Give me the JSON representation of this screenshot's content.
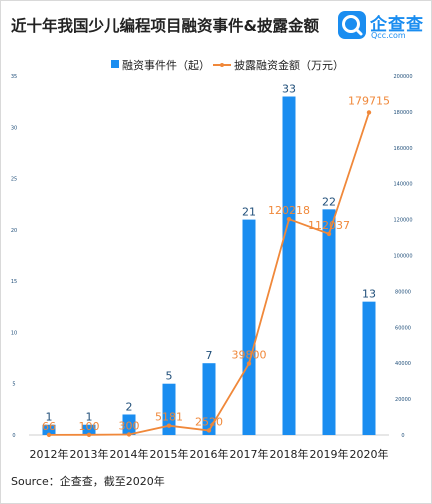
{
  "header": {
    "title": "近十年我国少儿编程项目融资事件&披露金额"
  },
  "logo": {
    "name": "企查查",
    "sub": "Qcc.com"
  },
  "legend": {
    "bar_label": "融资事件件（起）",
    "line_label": "披露融资金额（万元）"
  },
  "footer": {
    "source": "Source：企查查，截至2020年"
  },
  "colors": {
    "bar": "#1a8df0",
    "line": "#f0883a",
    "axis": "#1f4e79"
  },
  "chart_data": {
    "type": "bar",
    "categories": [
      "2012年",
      "2013年",
      "2014年",
      "2015年",
      "2016年",
      "2017年",
      "2018年",
      "2019年",
      "2020年"
    ],
    "series": [
      {
        "name": "融资事件件（起）",
        "type": "bar",
        "axis": "left",
        "values": [
          1,
          1,
          2,
          5,
          7,
          21,
          33,
          22,
          13
        ]
      },
      {
        "name": "披露融资金额（万元）",
        "type": "line",
        "axis": "right",
        "values": [
          66,
          100,
          300,
          5181,
          2520,
          39800,
          120218,
          112037,
          179715
        ]
      }
    ],
    "y_left": {
      "min": 0,
      "max": 35,
      "ticks": [
        0,
        5,
        10,
        15,
        20,
        25,
        30,
        35
      ]
    },
    "y_right": {
      "min": 0,
      "max": 200000,
      "ticks": [
        0,
        20000,
        40000,
        60000,
        80000,
        100000,
        120000,
        140000,
        160000,
        180000,
        200000
      ]
    },
    "bar_labels": [
      "1",
      "1",
      "2",
      "5",
      "7",
      "21",
      "33",
      "22",
      "13"
    ],
    "line_labels": [
      "66",
      "100",
      "300",
      "5181",
      "2520",
      "39800",
      "120218",
      "112037",
      "179715"
    ],
    "legend_position": "top",
    "grid": false
  }
}
